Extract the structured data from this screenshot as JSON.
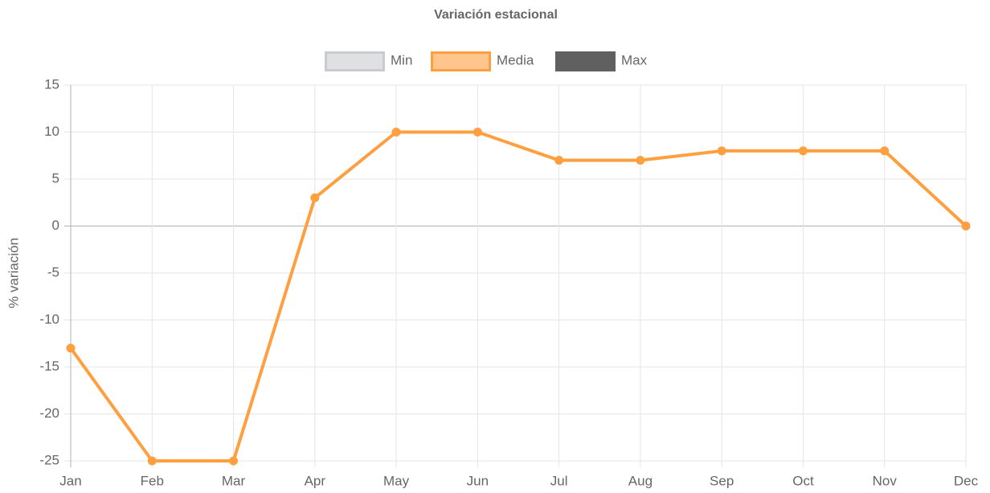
{
  "chart_data": {
    "type": "line",
    "title": "Variación estacional",
    "y_label": "% variación",
    "categories": [
      "Jan",
      "Feb",
      "Mar",
      "Apr",
      "May",
      "Jun",
      "Jul",
      "Aug",
      "Sep",
      "Oct",
      "Nov",
      "Dec"
    ],
    "series": [
      {
        "name": "Min",
        "color": "#c9cbcf",
        "values": [
          null,
          null,
          null,
          null,
          null,
          null,
          null,
          null,
          null,
          null,
          null,
          null
        ]
      },
      {
        "name": "Media",
        "color": "#ff9f40",
        "values": [
          -13,
          -25,
          -25,
          3,
          10,
          10,
          7,
          7,
          8,
          8,
          8,
          0
        ]
      },
      {
        "name": "Max",
        "color": "#606060",
        "values": [
          null,
          null,
          null,
          null,
          null,
          null,
          null,
          null,
          null,
          null,
          null,
          null
        ]
      }
    ],
    "ylim": [
      -25,
      15
    ],
    "yticks": [
      -25,
      -20,
      -15,
      -10,
      -5,
      0,
      5,
      10,
      15
    ],
    "grid": true,
    "legend": "top"
  }
}
